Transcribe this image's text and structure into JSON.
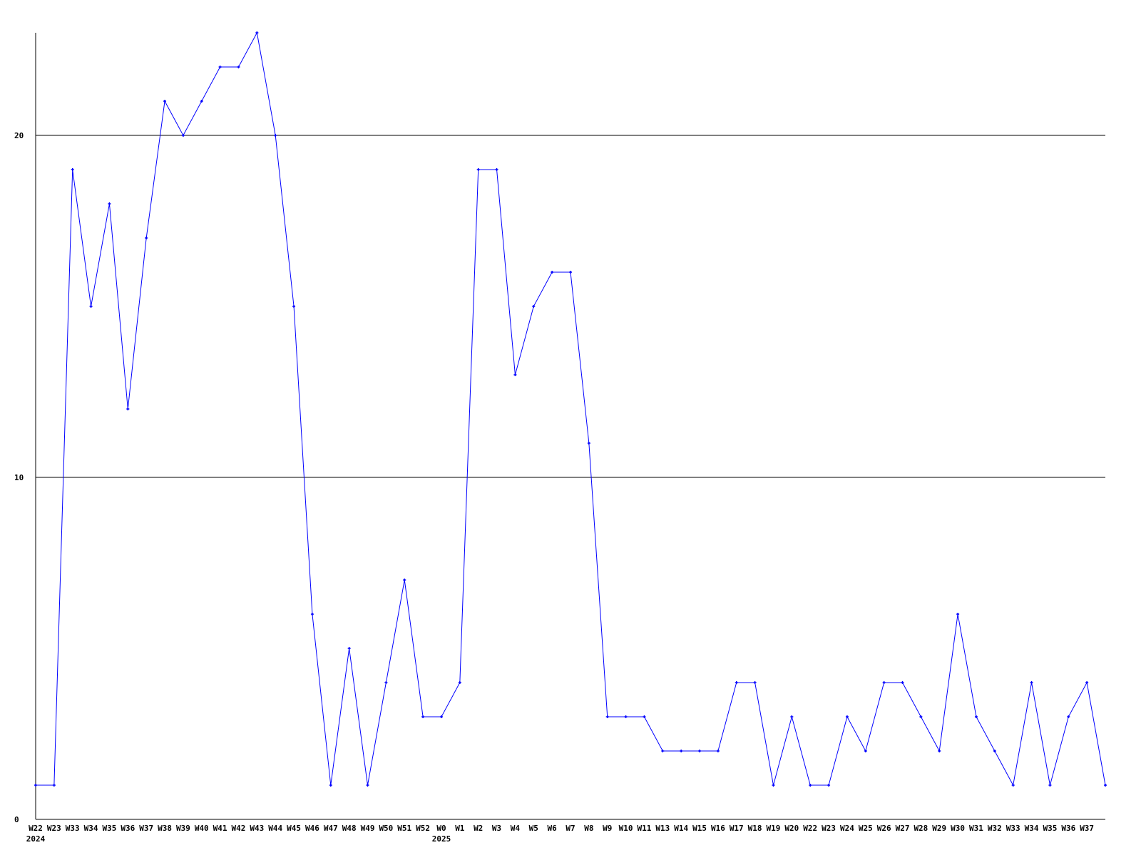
{
  "chart_data": {
    "type": "line",
    "title": "",
    "xlabel": "",
    "ylabel": "",
    "ylim": [
      0,
      23
    ],
    "yticks": [
      "0",
      "10",
      "20"
    ],
    "grid": "horizontal lines at 10 and 20",
    "line_color": "#0000ff",
    "year_labels": [
      {
        "at": 0,
        "label": "2024"
      },
      {
        "at": 22,
        "label": "2025"
      }
    ],
    "categories": [
      "W22",
      "W23",
      "W33",
      "W34",
      "W35",
      "W36",
      "W37",
      "W38",
      "W39",
      "W40",
      "W41",
      "W42",
      "W43",
      "W44",
      "W45",
      "W46",
      "W47",
      "W48",
      "W49",
      "W50",
      "W51",
      "W52",
      "W0",
      "W1",
      "W2",
      "W3",
      "W4",
      "W5",
      "W6",
      "W7",
      "W8",
      "W9",
      "W10",
      "W11",
      "W13",
      "W14",
      "W15",
      "W16",
      "W17",
      "W18",
      "W19",
      "W20",
      "W22",
      "W23",
      "W24",
      "W25",
      "W26",
      "W27",
      "W28",
      "W29",
      "W30",
      "W31",
      "W32",
      "W33",
      "W34",
      "W35",
      "W36",
      "W37",
      ""
    ],
    "values": [
      1,
      1,
      19,
      15,
      18,
      12,
      17,
      21,
      20,
      21,
      22,
      22,
      23,
      20,
      15,
      6,
      1,
      5,
      1,
      4,
      7,
      3,
      3,
      4,
      19,
      19,
      13,
      15,
      16,
      16,
      11,
      3,
      3,
      3,
      2,
      2,
      2,
      2,
      4,
      4,
      1,
      3,
      1,
      1,
      3,
      2,
      4,
      4,
      3,
      2,
      6,
      3,
      2,
      1,
      4,
      1,
      3,
      4,
      1
    ]
  }
}
